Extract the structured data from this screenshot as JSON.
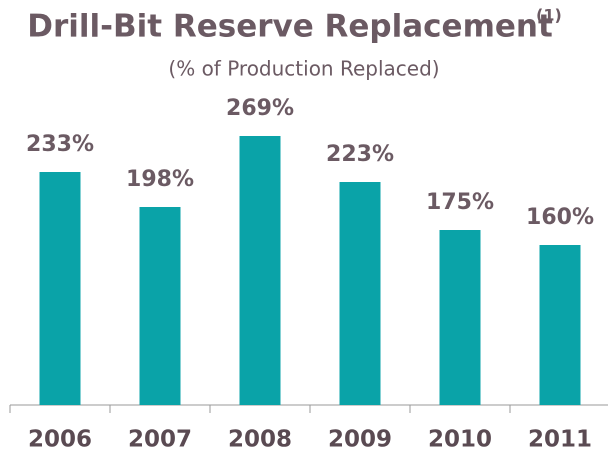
{
  "chart_data": {
    "type": "bar",
    "title": "Drill-Bit Reserve Replacement",
    "title_superscript": "(1)",
    "subtitle": "(% of Production Replaced)",
    "categories": [
      "2006",
      "2007",
      "2008",
      "2009",
      "2010",
      "2011"
    ],
    "values": [
      233,
      198,
      269,
      223,
      175,
      160
    ],
    "value_labels": [
      "233%",
      "198%",
      "269%",
      "223%",
      "175%",
      "160%"
    ],
    "color": "#0aa3a8",
    "ylim": [
      0,
      300
    ]
  }
}
